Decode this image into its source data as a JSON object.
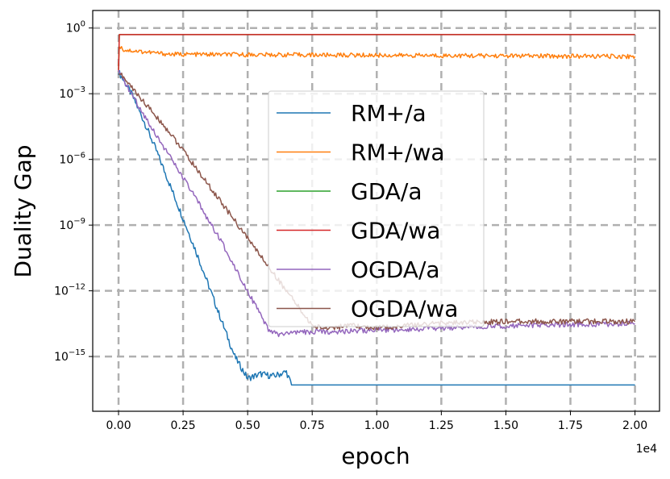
{
  "chart_data": {
    "type": "line",
    "xlabel": "epoch",
    "ylabel": "Duality Gap",
    "x_scale_label": "1e4",
    "yscale": "log",
    "xlim": [
      -1000,
      20950
    ],
    "ylim_exponent": [
      -17.5,
      0.8
    ],
    "grid": true,
    "legend_position": "upper center",
    "x_ticks": [
      {
        "value": 0,
        "label": "0.00"
      },
      {
        "value": 2500,
        "label": "0.25"
      },
      {
        "value": 5000,
        "label": "0.50"
      },
      {
        "value": 7500,
        "label": "0.75"
      },
      {
        "value": 10000,
        "label": "1.00"
      },
      {
        "value": 12500,
        "label": "1.25"
      },
      {
        "value": 15000,
        "label": "1.50"
      },
      {
        "value": 17500,
        "label": "1.75"
      },
      {
        "value": 20000,
        "label": "2.00"
      }
    ],
    "y_ticks": [
      {
        "exp": 0,
        "base": "10",
        "sup": "0"
      },
      {
        "exp": -3,
        "base": "10",
        "sup": "−3"
      },
      {
        "exp": -6,
        "base": "10",
        "sup": "−6"
      },
      {
        "exp": -9,
        "base": "10",
        "sup": "−9"
      },
      {
        "exp": -12,
        "base": "10",
        "sup": "−12"
      },
      {
        "exp": -15,
        "base": "10",
        "sup": "−15"
      }
    ],
    "series": [
      {
        "name": "RM+/a",
        "color": "#1f77b4",
        "noise": 0.15,
        "points": [
          [
            0,
            -2.0
          ],
          [
            500,
            -3.0
          ],
          [
            1000,
            -4.3
          ],
          [
            1500,
            -5.7
          ],
          [
            2000,
            -7.2
          ],
          [
            2500,
            -8.7
          ],
          [
            3000,
            -10.2
          ],
          [
            3500,
            -11.8
          ],
          [
            4000,
            -13.4
          ],
          [
            4500,
            -15.0
          ],
          [
            5000,
            -16.0
          ],
          [
            5500,
            -15.8
          ],
          [
            6000,
            -15.9
          ],
          [
            6500,
            -15.7
          ],
          [
            6700,
            -16.3
          ],
          [
            20000,
            -16.3
          ]
        ]
      },
      {
        "name": "RM+/wa",
        "color": "#ff7f0e",
        "noise": 0.1,
        "points": [
          [
            0,
            -1.8
          ],
          [
            30,
            -0.8
          ],
          [
            200,
            -1.0
          ],
          [
            2000,
            -1.2
          ],
          [
            20000,
            -1.3
          ]
        ]
      },
      {
        "name": "GDA/a",
        "color": "#2ca02c",
        "noise": 0.15,
        "points": [
          [
            0,
            -2.0
          ],
          [
            30,
            -0.3
          ],
          [
            20000,
            -0.3
          ]
        ]
      },
      {
        "name": "GDA/wa",
        "color": "#d62728",
        "noise": 0.15,
        "points": [
          [
            0,
            -1.9
          ],
          [
            30,
            -0.3
          ],
          [
            20000,
            -0.3
          ]
        ]
      },
      {
        "name": "OGDA/a",
        "color": "#9467bd",
        "noise": 0.12,
        "points": [
          [
            0,
            -2.0
          ],
          [
            1000,
            -4.0
          ],
          [
            2000,
            -5.9
          ],
          [
            3000,
            -7.8
          ],
          [
            4000,
            -9.8
          ],
          [
            5000,
            -12.0
          ],
          [
            5800,
            -13.8
          ],
          [
            6200,
            -14.0
          ],
          [
            7000,
            -13.9
          ],
          [
            10000,
            -13.8
          ],
          [
            15000,
            -13.6
          ],
          [
            20000,
            -13.5
          ]
        ]
      },
      {
        "name": "OGDA/wa",
        "color": "#8c564b",
        "noise": 0.12,
        "points": [
          [
            0,
            -2.0
          ],
          [
            1000,
            -3.4
          ],
          [
            2000,
            -4.8
          ],
          [
            3000,
            -6.4
          ],
          [
            4000,
            -8.0
          ],
          [
            5000,
            -9.6
          ],
          [
            6000,
            -11.2
          ],
          [
            7000,
            -12.8
          ],
          [
            7500,
            -13.6
          ],
          [
            8000,
            -13.7
          ],
          [
            9000,
            -13.6
          ],
          [
            10000,
            -13.7
          ],
          [
            12000,
            -13.5
          ],
          [
            15000,
            -13.4
          ],
          [
            20000,
            -13.4
          ]
        ]
      }
    ]
  }
}
